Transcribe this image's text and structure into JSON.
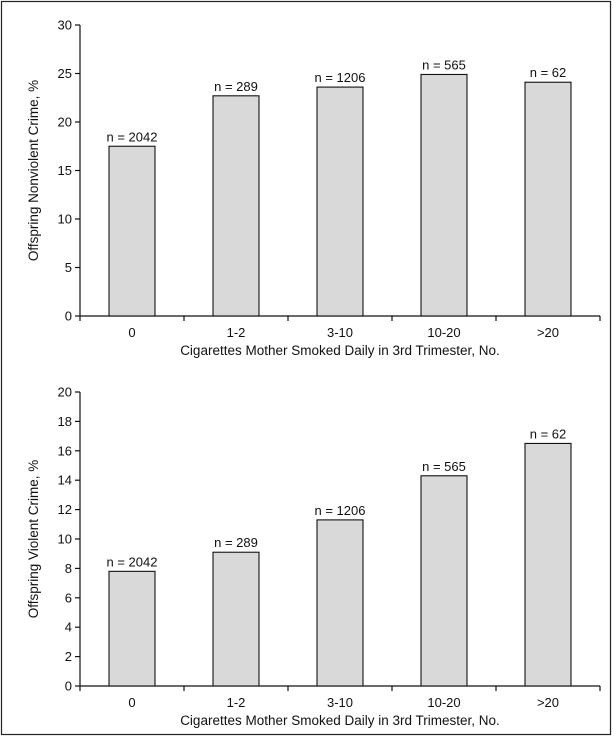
{
  "chart_data": [
    {
      "type": "bar",
      "title": "",
      "xlabel": "Cigarettes Mother Smoked Daily in 3rd Trimester, No.",
      "ylabel": "Offspring Nonviolent Crime, %",
      "categories": [
        "0",
        "1-2",
        "3-10",
        "10-20",
        ">20"
      ],
      "values": [
        17.5,
        22.7,
        23.6,
        24.9,
        24.1
      ],
      "bar_labels": [
        "n = 2042",
        "n = 289",
        "n = 1206",
        "n = 565",
        "n = 62"
      ],
      "ylim": [
        0,
        30
      ],
      "yticks": [
        "0",
        "5",
        "10",
        "15",
        "20",
        "25",
        "30"
      ],
      "grid": false,
      "bar_color": "#d9d9d9"
    },
    {
      "type": "bar",
      "title": "",
      "xlabel": "Cigarettes Mother Smoked Daily in 3rd Trimester, No.",
      "ylabel": "Offspring Violent Crime, %",
      "categories": [
        "0",
        "1-2",
        "3-10",
        "10-20",
        ">20"
      ],
      "values": [
        7.8,
        9.1,
        11.3,
        14.3,
        16.5
      ],
      "bar_labels": [
        "n = 2042",
        "n = 289",
        "n = 1206",
        "n = 565",
        "n = 62"
      ],
      "ylim": [
        0,
        20
      ],
      "yticks": [
        "0",
        "2",
        "4",
        "6",
        "8",
        "10",
        "12",
        "14",
        "16",
        "18",
        "20"
      ],
      "grid": false,
      "bar_color": "#d9d9d9"
    }
  ]
}
